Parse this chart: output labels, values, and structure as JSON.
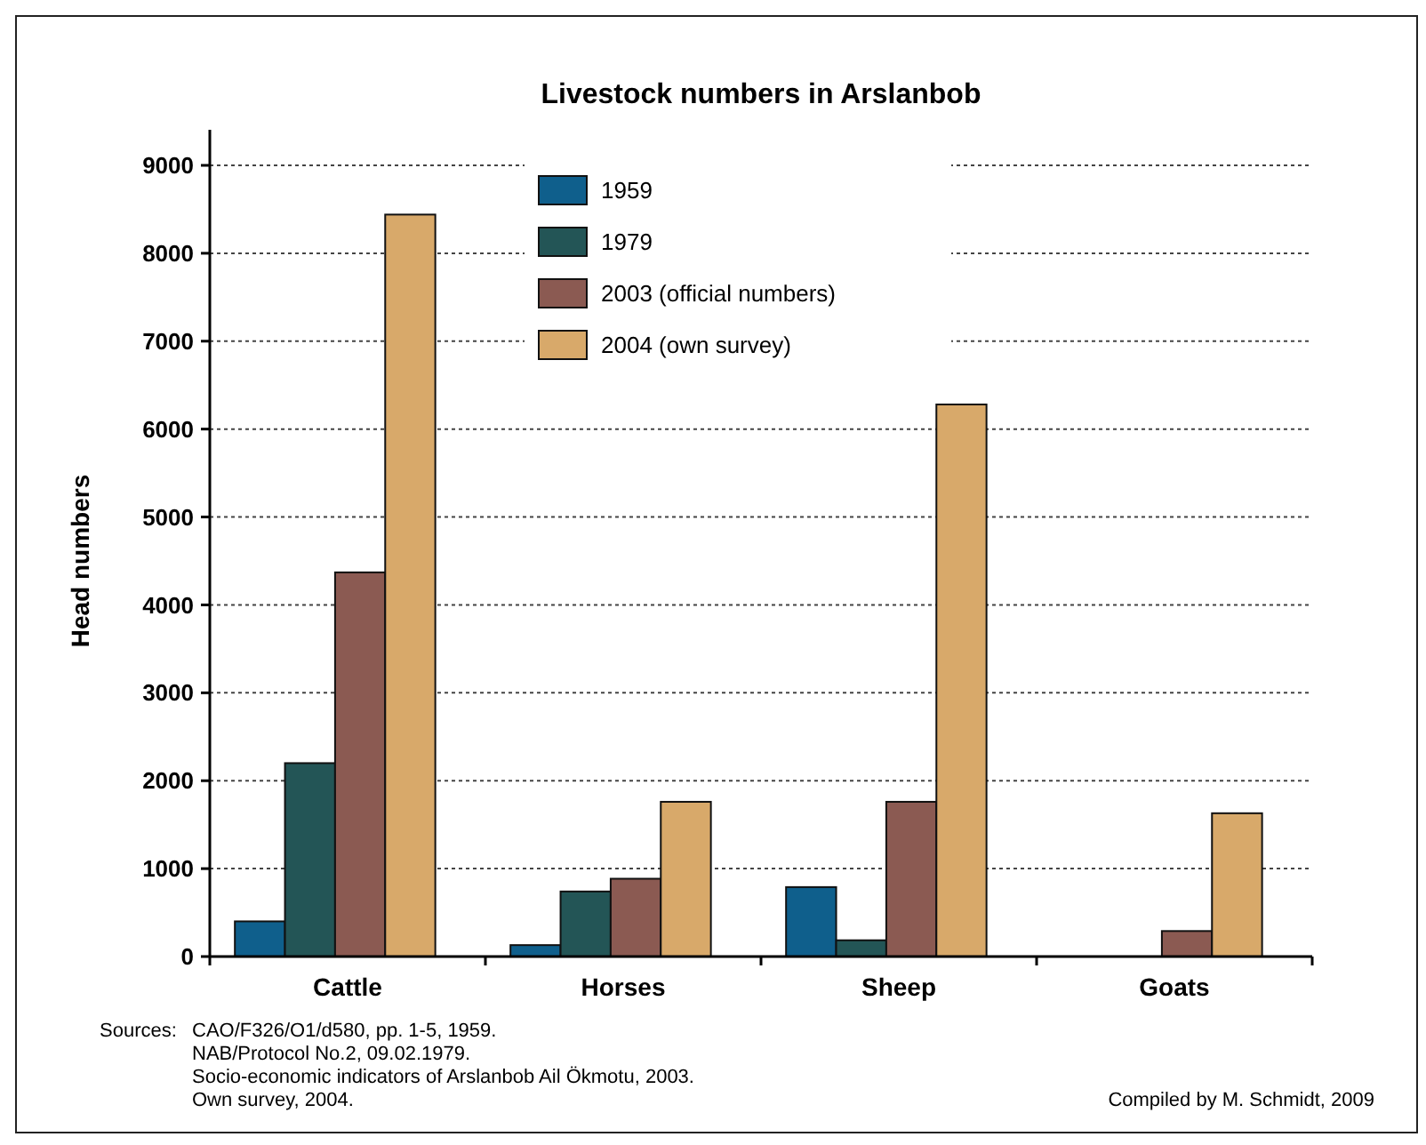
{
  "chart_data": {
    "type": "bar",
    "title": "Livestock numbers in Arslanbob",
    "ylabel": "Head numbers",
    "categories": [
      "Cattle",
      "Horses",
      "Sheep",
      "Goats"
    ],
    "series": [
      {
        "name": "1959",
        "color": "#0f5f8c",
        "values": [
          400,
          130,
          790,
          null
        ]
      },
      {
        "name": "1979",
        "color": "#235556",
        "values": [
          2200,
          740,
          185,
          null
        ]
      },
      {
        "name": "2003 (official numbers)",
        "color": "#8b5a52",
        "values": [
          4370,
          885,
          1760,
          290
        ]
      },
      {
        "name": "2004 (own survey)",
        "color": "#d8a96a",
        "values": [
          8440,
          1760,
          6280,
          1630
        ]
      }
    ],
    "ylim": [
      0,
      9000
    ],
    "yticks": [
      0,
      1000,
      2000,
      3000,
      4000,
      5000,
      6000,
      7000,
      8000,
      9000
    ],
    "grid": "y",
    "legend": "top",
    "annotations": [
      "Sources:",
      "CAO/F326/O1/d580, pp. 1-5, 1959.",
      "NAB/Protocol No.2, 09.02.1979.",
      "Socio-economic indicators of Arslanbob Ail Ökmotu, 2003.",
      "Own survey, 2004.",
      "Compiled by M. Schmidt, 2009"
    ]
  }
}
